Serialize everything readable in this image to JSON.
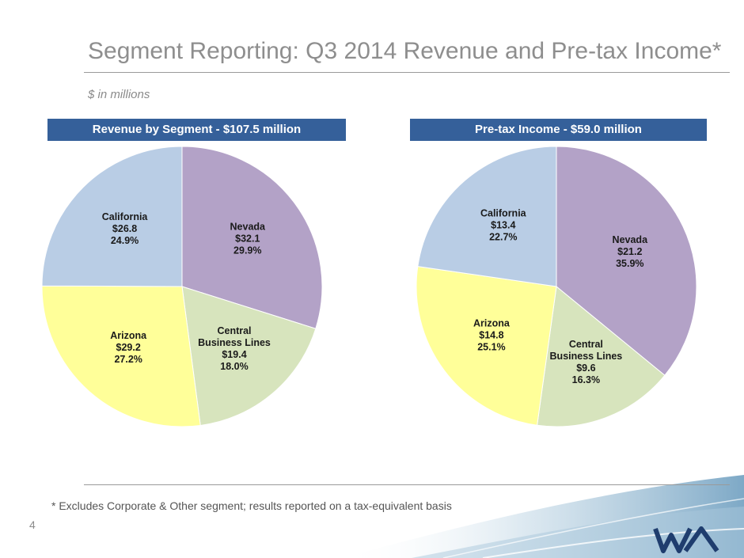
{
  "slide": {
    "title": "Segment Reporting:  Q3 2014 Revenue and Pre-tax Income*",
    "subtitle": "$ in millions",
    "footnote": "* Excludes Corporate & Other segment;  results reported on a tax-equivalent basis",
    "page_number": "4"
  },
  "chart_data": [
    {
      "type": "pie",
      "title": "Revenue by Segment - $107.5 million",
      "unit": "$ millions",
      "slices": [
        {
          "name": "Nevada",
          "value": 32.1,
          "value_label": "$32.1",
          "percent_label": "29.9%",
          "color": "#b3a2c7"
        },
        {
          "name": "Central Business Lines",
          "value": 19.4,
          "value_label": "$19.4",
          "percent_label": "18.0%",
          "color": "#d7e4bd"
        },
        {
          "name": "Arizona",
          "value": 29.2,
          "value_label": "$29.2",
          "percent_label": "27.2%",
          "color": "#ffff99"
        },
        {
          "name": "California",
          "value": 26.8,
          "value_label": "$26.8",
          "percent_label": "24.9%",
          "color": "#b9cde5"
        }
      ]
    },
    {
      "type": "pie",
      "title": "Pre-tax Income - $59.0 million",
      "unit": "$ millions",
      "slices": [
        {
          "name": "Nevada",
          "value": 21.2,
          "value_label": "$21.2",
          "percent_label": "35.9%",
          "color": "#b3a2c7"
        },
        {
          "name": "Central Business Lines",
          "value": 9.6,
          "value_label": "$9.6",
          "percent_label": "16.3%",
          "color": "#d7e4bd"
        },
        {
          "name": "Arizona",
          "value": 14.8,
          "value_label": "$14.8",
          "percent_label": "25.1%",
          "color": "#ffff99"
        },
        {
          "name": "California",
          "value": 13.4,
          "value_label": "$13.4",
          "percent_label": "22.7%",
          "color": "#b9cde5"
        }
      ]
    }
  ],
  "logo": {
    "text": "WA",
    "color": "#1f3d6e"
  }
}
